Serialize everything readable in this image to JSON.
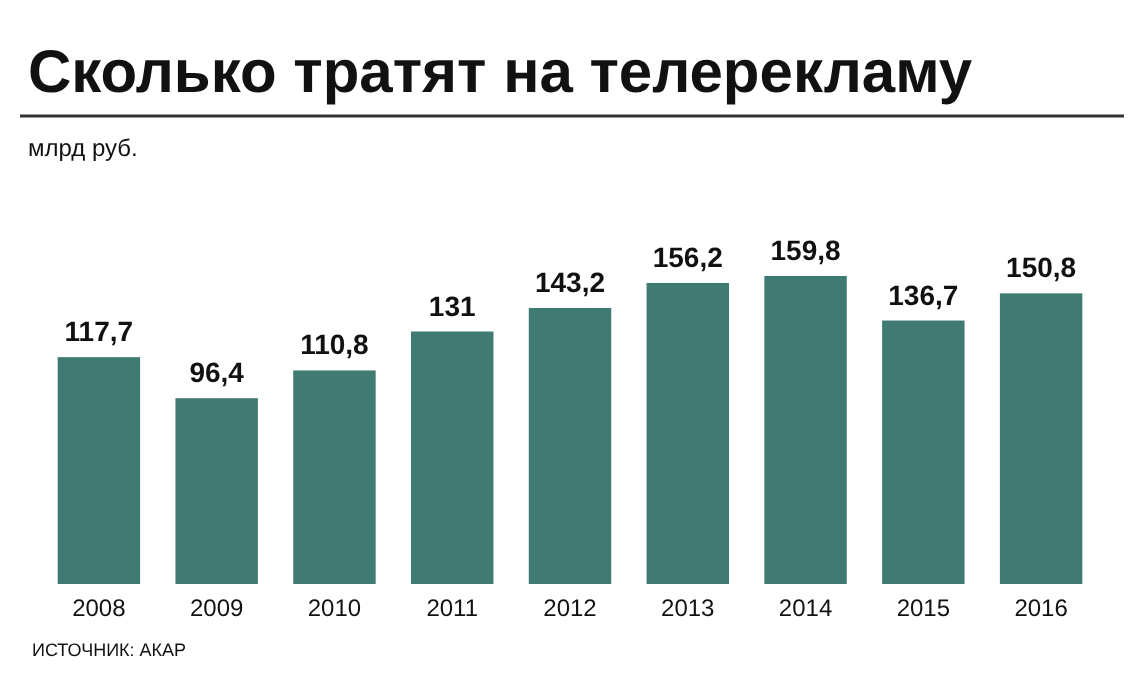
{
  "chart_data": {
    "type": "bar",
    "title": "Сколько тратят на телерекламу",
    "ylabel": "млрд руб.",
    "categories": [
      "2008",
      "2009",
      "2010",
      "2011",
      "2012",
      "2013",
      "2014",
      "2015",
      "2016"
    ],
    "values": [
      117.7,
      96.4,
      110.8,
      131,
      143.2,
      156.2,
      159.8,
      136.7,
      150.8
    ],
    "value_labels": [
      "117,7",
      "96,4",
      "110,8",
      "131",
      "143,2",
      "156,2",
      "159,8",
      "136,7",
      "150,8"
    ],
    "color": "#3f7b72",
    "annotations": [
      "ИСТОЧНИК: АКАР"
    ]
  }
}
